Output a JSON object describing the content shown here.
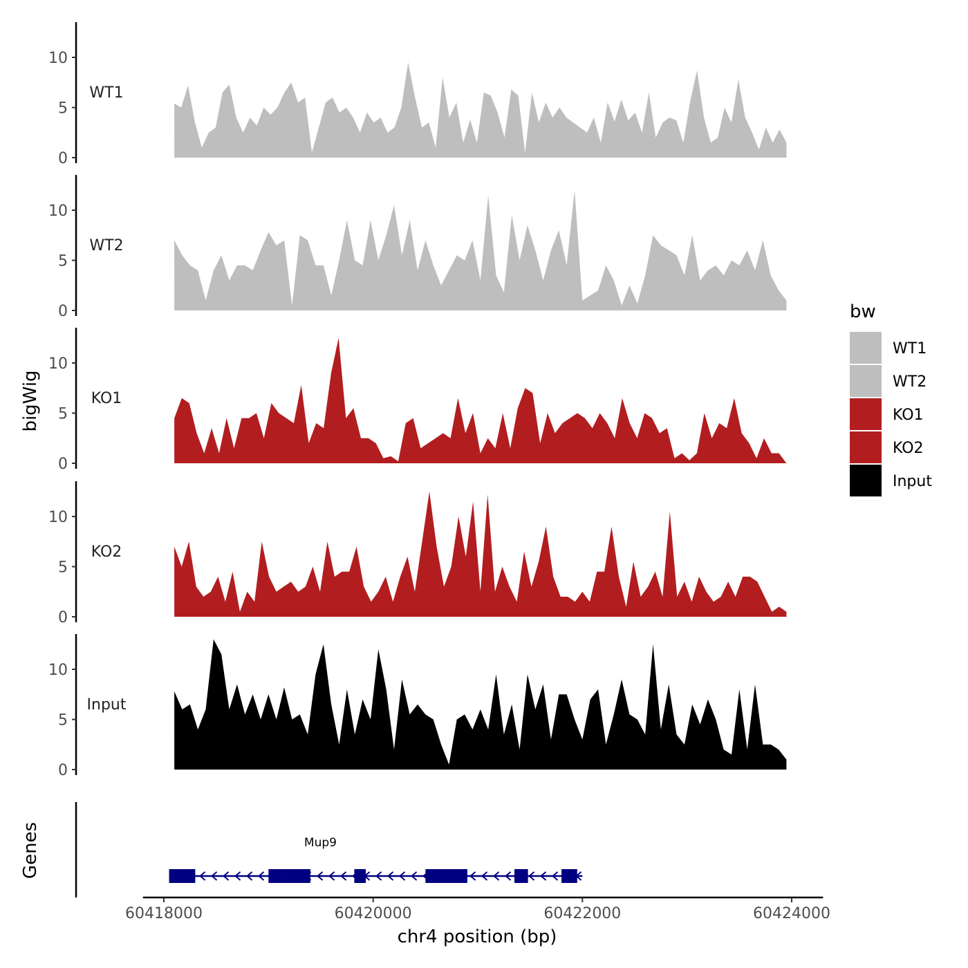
{
  "chart_data": {
    "type": "area",
    "ylabel": "bigWig",
    "xlabel": "chr4 position (bp)",
    "xlim": [
      60417800,
      60424300
    ],
    "x_ticks": [
      60418000,
      60420000,
      60422000,
      60424000
    ],
    "x_tick_labels": [
      "60418000",
      "60420000",
      "60422000",
      "60424000"
    ],
    "ylim": [
      0,
      14
    ],
    "y_ticks": [
      0,
      5,
      10
    ],
    "y_tick_labels": [
      "0",
      "5",
      "10"
    ],
    "legend": {
      "title": "bw",
      "position": "right",
      "entries": [
        {
          "label": "WT1",
          "color": "#bebebe"
        },
        {
          "label": "WT2",
          "color": "#bebebe"
        },
        {
          "label": "KO1",
          "color": "#b21e20"
        },
        {
          "label": "KO2",
          "color": "#b21e20"
        },
        {
          "label": "Input",
          "color": "#000000"
        }
      ]
    },
    "x_start": 60418100,
    "x_end": 60423950,
    "series": [
      {
        "name": "WT1",
        "color": "#bebebe",
        "values": [
          5.4,
          5,
          7.2,
          3.5,
          1,
          2.5,
          3,
          6.5,
          7.3,
          4,
          2.5,
          4,
          3.2,
          5,
          4.3,
          5,
          6.5,
          7.5,
          5.5,
          6,
          0.5,
          3,
          5.5,
          6,
          4.5,
          5,
          4,
          2.5,
          4.5,
          3.5,
          4,
          2.5,
          3,
          5,
          9.5,
          6,
          3,
          3.5,
          1,
          8,
          4,
          5.5,
          1.5,
          3.8,
          1.5,
          6.5,
          6.2,
          4.5,
          2,
          6.8,
          6.2,
          0.5,
          6.5,
          3.5,
          5.5,
          4,
          5,
          4,
          3.5,
          3,
          2.5,
          4,
          1.5,
          5.5,
          3.6,
          5.8,
          3.7,
          4.5,
          2.5,
          6.5,
          2,
          3.5,
          4,
          3.7,
          1.5,
          5.6,
          8.7,
          4,
          1.5,
          2,
          5,
          3.5,
          7.8,
          4,
          2.5,
          0.8,
          3,
          1.5,
          2.8,
          1.5
        ]
      },
      {
        "name": "WT2",
        "color": "#bebebe",
        "values": [
          7,
          5.5,
          4.5,
          4,
          1,
          4,
          5.5,
          3,
          4.5,
          4.5,
          4,
          6,
          7.8,
          6.5,
          7,
          0.5,
          7.5,
          7,
          4.5,
          4.5,
          1.5,
          5,
          9,
          5,
          4.5,
          9,
          5,
          7.5,
          10.5,
          5.5,
          9,
          4,
          7,
          4.5,
          2.5,
          4,
          5.5,
          5,
          7,
          3,
          11.5,
          3.5,
          1.8,
          9.5,
          5,
          8.5,
          6,
          3,
          6,
          8,
          4.5,
          12,
          1,
          1.5,
          2,
          4.5,
          3,
          0.5,
          2.5,
          0.7,
          3.5,
          7.5,
          6.5,
          6,
          5.5,
          3.5,
          7.5,
          3,
          4,
          4.5,
          3.5,
          5,
          4.5,
          6,
          4,
          7,
          3.5,
          2,
          1
        ]
      },
      {
        "name": "KO1",
        "color": "#b21e20",
        "values": [
          4.5,
          6.5,
          6,
          3,
          1,
          3.5,
          1,
          4.5,
          1.5,
          4.5,
          4.5,
          5,
          2.5,
          6,
          5,
          4.5,
          4,
          7.8,
          2,
          4,
          3.5,
          9,
          12.5,
          4.5,
          5.5,
          2.5,
          2.5,
          2,
          0.5,
          0.7,
          0.2,
          4,
          4.5,
          1.5,
          2,
          2.5,
          3,
          2.5,
          6.5,
          3,
          5,
          1,
          2.5,
          1.5,
          5,
          1.5,
          5.5,
          7.5,
          7,
          2,
          5,
          3,
          4,
          4.5,
          5,
          4.5,
          3.5,
          5,
          4,
          2.5,
          6.5,
          4,
          2.5,
          5,
          4.5,
          3,
          3.5,
          0.5,
          1,
          0.3,
          1,
          5,
          2.5,
          4,
          3.5,
          6.5,
          3,
          2,
          0.5,
          2.5,
          1,
          1,
          0
        ]
      },
      {
        "name": "KO2",
        "color": "#b21e20",
        "values": [
          7,
          5,
          7.5,
          3,
          2,
          2.5,
          4,
          1.5,
          4.5,
          0.5,
          2.5,
          1.5,
          7.5,
          4,
          2.5,
          3,
          3.5,
          2.5,
          3,
          5,
          2.5,
          7.5,
          4,
          4.5,
          4.5,
          7,
          3,
          1.5,
          2.5,
          4,
          1.5,
          4,
          6,
          2.5,
          7.5,
          12.5,
          7,
          3,
          5,
          10,
          6,
          11.5,
          2.5,
          12.2,
          2.5,
          5,
          3,
          1.5,
          6.5,
          3,
          5.5,
          9,
          4,
          2,
          2,
          1.5,
          2.5,
          1.5,
          4.5,
          4.5,
          9,
          4,
          1,
          5.5,
          2,
          3,
          4.5,
          2,
          10.5,
          2,
          3.5,
          1.5,
          4,
          2.5,
          1.5,
          2,
          3.5,
          2,
          4,
          4,
          3.5,
          2,
          0.5,
          1,
          0.5
        ]
      },
      {
        "name": "Input",
        "color": "#000000",
        "values": [
          7.8,
          6,
          6.5,
          4,
          6,
          13,
          11.5,
          6,
          8.5,
          5.5,
          7.5,
          5,
          7.5,
          5,
          8.2,
          5,
          5.5,
          3.5,
          9.5,
          12.5,
          6.5,
          2.5,
          8,
          3.5,
          7,
          5,
          12,
          8,
          2,
          9,
          5.5,
          6.5,
          5.5,
          5,
          2.5,
          0.5,
          5,
          5.5,
          4,
          6,
          4,
          9.5,
          3.5,
          6.5,
          2,
          9.5,
          6,
          8.5,
          3,
          7.5,
          7.5,
          5,
          3,
          7,
          8,
          2.5,
          5.5,
          9,
          5.5,
          5,
          3.5,
          12.5,
          4,
          8.5,
          3.5,
          2.5,
          6.5,
          4.5,
          7,
          5,
          2,
          1.5,
          8,
          2,
          8.5,
          2.5,
          2.5,
          2,
          1
        ]
      }
    ],
    "genes_track": {
      "ylabel": "Genes",
      "gene": "Mup9",
      "color": "#000080",
      "strand": "-",
      "start": 60418050,
      "end": 60422000,
      "exons": [
        [
          60418050,
          60418300
        ],
        [
          60419000,
          60419150
        ],
        [
          60419150,
          60419400
        ],
        [
          60419820,
          60419930
        ],
        [
          60420500,
          60420900
        ],
        [
          60421350,
          60421480
        ],
        [
          60421800,
          60421950
        ]
      ]
    }
  }
}
